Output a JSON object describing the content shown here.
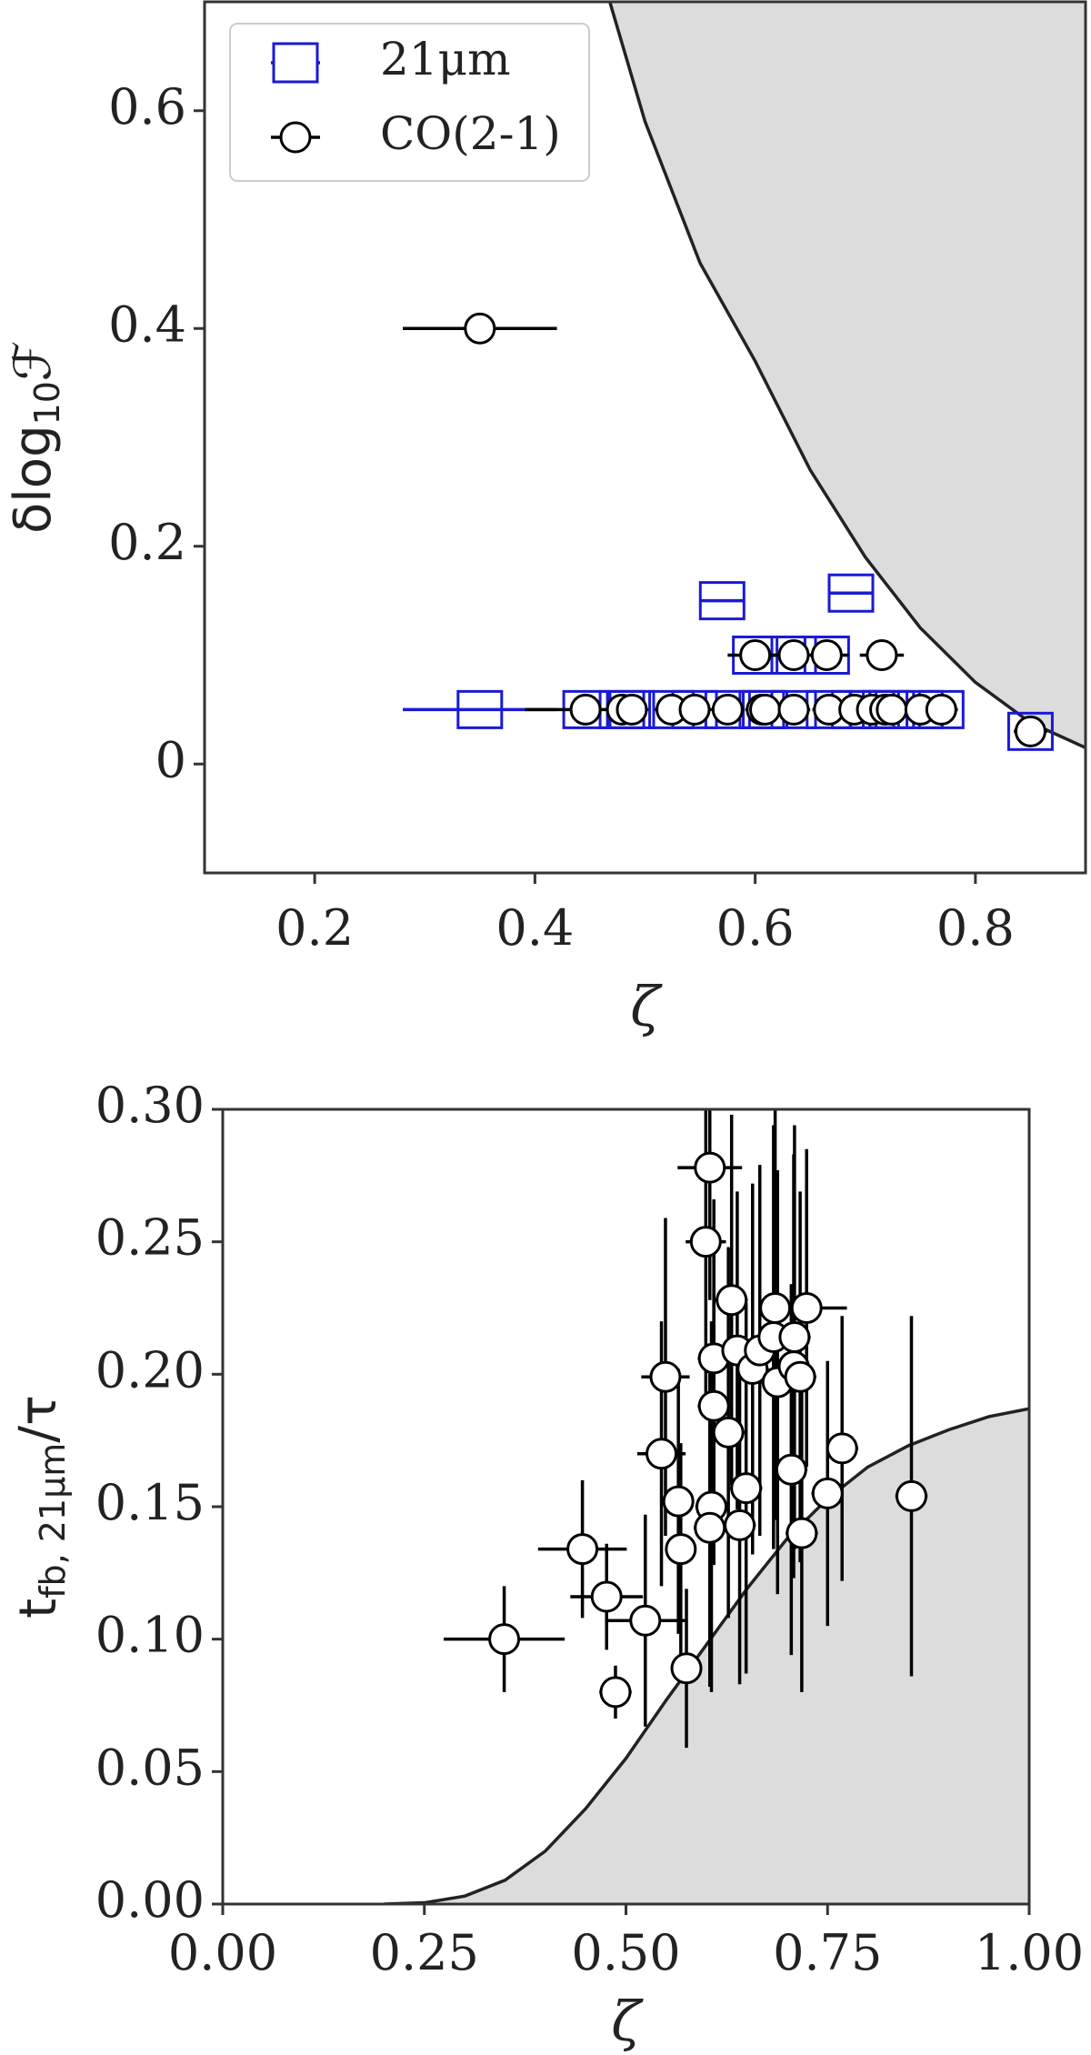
{
  "chart_data": [
    {
      "type": "scatter",
      "xlabel": "ζ",
      "ylabel_parts": [
        "δlog",
        "10",
        "ℱ"
      ],
      "xlim": [
        0.1,
        0.9
      ],
      "ylim": [
        -0.1,
        0.7
      ],
      "xticks": [
        0.2,
        0.4,
        0.6,
        0.8
      ],
      "yticks": [
        0.0,
        0.2,
        0.4,
        0.6
      ],
      "legend": "upper left",
      "shade": "above",
      "shade_color": "#dcdcdc",
      "boundary": {
        "x": [
          0.468,
          0.5,
          0.55,
          0.6,
          0.65,
          0.7,
          0.75,
          0.8,
          0.85,
          0.9
        ],
        "y": [
          0.7,
          0.59,
          0.46,
          0.37,
          0.27,
          0.19,
          0.125,
          0.075,
          0.038,
          0.015
        ]
      },
      "series": [
        {
          "name": "21μm",
          "marker": "square",
          "color": "#1a1ad6",
          "x": [
            0.35,
            0.57,
            0.687,
            0.6,
            0.635,
            0.665,
            0.446,
            0.479,
            0.488,
            0.524,
            0.545,
            0.575,
            0.606,
            0.609,
            0.635,
            0.667,
            0.69,
            0.706,
            0.718,
            0.724,
            0.75,
            0.769,
            0.85
          ],
          "values": [
            0.05,
            0.15,
            0.157,
            0.1,
            0.1,
            0.1,
            0.05,
            0.05,
            0.05,
            0.05,
            0.05,
            0.05,
            0.05,
            0.05,
            0.05,
            0.05,
            0.05,
            0.05,
            0.05,
            0.05,
            0.05,
            0.05,
            0.03
          ],
          "xerr": [
            0.07,
            0.02,
            0.02,
            0.01,
            0.01,
            0.01,
            0.01,
            0.01,
            0.01,
            0.01,
            0.01,
            0.01,
            0.01,
            0.01,
            0.01,
            0.01,
            0.01,
            0.01,
            0.01,
            0.01,
            0.01,
            0.01,
            0.015
          ]
        },
        {
          "name": "CO(2-1)",
          "marker": "circle",
          "color": "#000000",
          "x": [
            0.35,
            0.6,
            0.635,
            0.665,
            0.715,
            0.446,
            0.479,
            0.488,
            0.524,
            0.545,
            0.575,
            0.606,
            0.609,
            0.635,
            0.667,
            0.69,
            0.706,
            0.718,
            0.724,
            0.75,
            0.769,
            0.85
          ],
          "values": [
            0.4,
            0.1,
            0.1,
            0.1,
            0.1,
            0.05,
            0.05,
            0.05,
            0.05,
            0.05,
            0.05,
            0.05,
            0.05,
            0.05,
            0.05,
            0.05,
            0.05,
            0.05,
            0.05,
            0.05,
            0.05,
            0.03
          ],
          "xerr": [
            0.07,
            0.025,
            0.02,
            0.02,
            0.02,
            0.055,
            0.015,
            0.015,
            0.015,
            0.015,
            0.015,
            0.015,
            0.015,
            0.015,
            0.015,
            0.015,
            0.015,
            0.015,
            0.015,
            0.015,
            0.015,
            0.015
          ]
        }
      ]
    },
    {
      "type": "scatter",
      "xlabel": "ζ",
      "ylabel_parts": [
        "t",
        "fb, 21μm",
        "/τ"
      ],
      "xlim": [
        0.0,
        1.0
      ],
      "ylim": [
        0.0,
        0.3
      ],
      "xticks": [
        {
          "value": 0,
          "label": "0.00"
        },
        {
          "value": 0.25,
          "label": "0.25"
        },
        {
          "value": 0.5,
          "label": "0.50"
        },
        {
          "value": 0.75,
          "label": "0.75"
        },
        {
          "value": 1,
          "label": "1.00"
        }
      ],
      "yticks": [
        {
          "value": 0,
          "label": "0.00"
        },
        {
          "value": 0.05,
          "label": "0.05"
        },
        {
          "value": 0.1,
          "label": "0.10"
        },
        {
          "value": 0.15,
          "label": "0.15"
        },
        {
          "value": 0.2,
          "label": "0.20"
        },
        {
          "value": 0.25,
          "label": "0.25"
        },
        {
          "value": 0.3,
          "label": "0.30"
        }
      ],
      "shade": "below",
      "shade_color": "#dcdcdc",
      "boundary": {
        "x": [
          0.2,
          0.25,
          0.3,
          0.35,
          0.4,
          0.45,
          0.5,
          0.55,
          0.6,
          0.65,
          0.7,
          0.75,
          0.8,
          0.85,
          0.9,
          0.95,
          1.0
        ],
        "y": [
          0.0,
          0.0005,
          0.003,
          0.009,
          0.02,
          0.036,
          0.055,
          0.077,
          0.098,
          0.119,
          0.138,
          0.153,
          0.165,
          0.173,
          0.179,
          0.184,
          0.187
        ]
      },
      "series": [
        {
          "marker": "circle",
          "color": "#000000",
          "x": [
            0.349,
            0.446,
            0.476,
            0.487,
            0.524,
            0.549,
            0.544,
            0.565,
            0.568,
            0.575,
            0.604,
            0.599,
            0.609,
            0.609,
            0.606,
            0.604,
            0.627,
            0.631,
            0.638,
            0.649,
            0.641,
            0.657,
            0.666,
            0.685,
            0.683,
            0.688,
            0.705,
            0.709,
            0.708,
            0.716,
            0.718,
            0.724,
            0.75,
            0.768,
            0.854
          ],
          "values": [
            0.1,
            0.134,
            0.116,
            0.08,
            0.107,
            0.199,
            0.17,
            0.152,
            0.134,
            0.089,
            0.278,
            0.25,
            0.206,
            0.188,
            0.15,
            0.142,
            0.178,
            0.228,
            0.209,
            0.157,
            0.143,
            0.202,
            0.209,
            0.225,
            0.214,
            0.197,
            0.164,
            0.214,
            0.203,
            0.199,
            0.14,
            0.225,
            0.155,
            0.172,
            0.154
          ],
          "xerr": [
            0.075,
            0.055,
            0.045,
            0.02,
            0.05,
            0.03,
            0.03,
            0.015,
            0.015,
            0.015,
            0.04,
            0.025,
            0.02,
            0.02,
            0.02,
            0.02,
            0.02,
            0.02,
            0.02,
            0.02,
            0.02,
            0.02,
            0.02,
            0.02,
            0.02,
            0.02,
            0.02,
            0.02,
            0.02,
            0.02,
            0.02,
            0.05,
            0.02,
            0.02,
            0.02
          ],
          "yerr": [
            0.02,
            0.026,
            0.02,
            0.01,
            0.04,
            0.06,
            0.05,
            0.05,
            0.04,
            0.03,
            0.05,
            0.06,
            0.06,
            0.06,
            0.07,
            0.06,
            0.07,
            0.07,
            0.06,
            0.07,
            0.06,
            0.07,
            0.07,
            0.08,
            0.08,
            0.08,
            0.07,
            0.08,
            0.08,
            0.07,
            0.06,
            0.06,
            0.05,
            0.05,
            0.068
          ]
        }
      ]
    }
  ]
}
